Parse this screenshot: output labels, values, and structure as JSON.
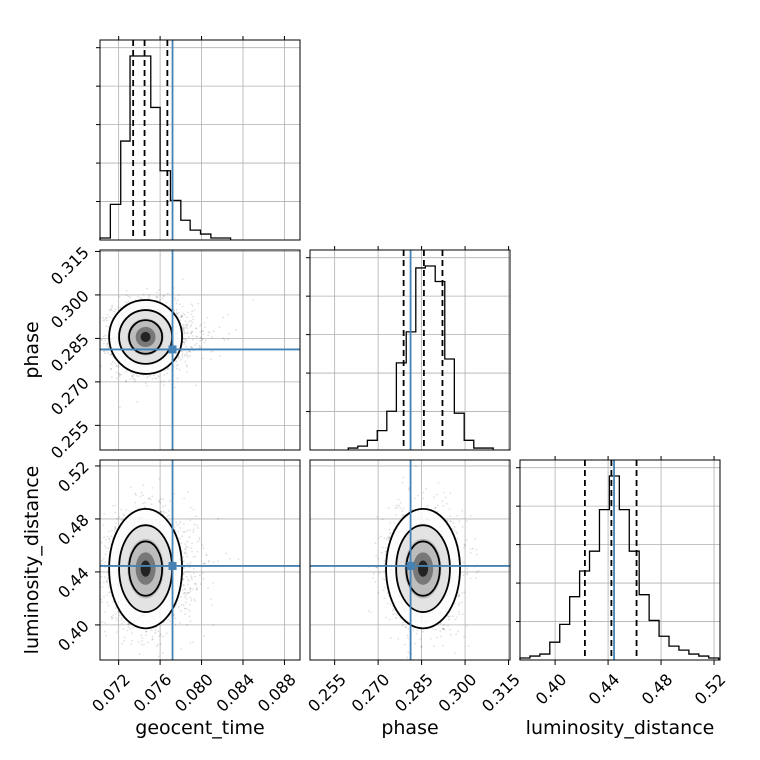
{
  "chart_data": {
    "type": "corner",
    "parameters": [
      "geocent_time",
      "phase",
      "luminosity_distance"
    ],
    "truths": {
      "geocent_time": 0.0772,
      "phase": 0.2812,
      "luminosity_distance": 0.4445
    },
    "truth_color": "#4682b4",
    "quantiles": {
      "geocent_time": [
        0.0734,
        0.0745,
        0.0767
      ],
      "phase": [
        0.2788,
        0.2858,
        0.2922
      ],
      "luminosity_distance": [
        0.4225,
        0.4425,
        0.4615
      ]
    },
    "ranges": {
      "geocent_time": [
        0.0702,
        0.0895
      ],
      "phase": [
        0.2465,
        0.3155
      ],
      "luminosity_distance": [
        0.3735,
        0.5245
      ]
    },
    "ticks": {
      "geocent_time": [
        "0.072",
        "0.076",
        "0.080",
        "0.084",
        "0.088"
      ],
      "phase": [
        "0.255",
        "0.270",
        "0.285",
        "0.300",
        "0.315"
      ],
      "luminosity_distance": [
        "0.40",
        "0.44",
        "0.48",
        "0.52"
      ]
    },
    "histograms": {
      "geocent_time": {
        "edges": [
          0.0702,
          0.0712,
          0.0722,
          0.0731,
          0.0741,
          0.0751,
          0.076,
          0.077,
          0.078,
          0.0789,
          0.0799,
          0.0809,
          0.0818,
          0.0828
        ],
        "counts": [
          1,
          18,
          50,
          93,
          93,
          67,
          35,
          20,
          10,
          5,
          3,
          1,
          1
        ]
      },
      "phase": {
        "edges": [
          0.2597,
          0.263,
          0.2663,
          0.2697,
          0.273,
          0.2763,
          0.2797,
          0.283,
          0.2863,
          0.2897,
          0.293,
          0.2963,
          0.2997,
          0.303,
          0.3063,
          0.3097
        ],
        "counts": [
          1,
          2,
          5,
          10,
          20,
          45,
          61,
          94,
          95,
          87,
          47,
          19,
          5,
          1,
          1
        ]
      },
      "luminosity_distance": {
        "edges": [
          0.3735,
          0.381,
          0.3885,
          0.396,
          0.4035,
          0.411,
          0.4185,
          0.426,
          0.4335,
          0.441,
          0.4485,
          0.456,
          0.4635,
          0.471,
          0.4785,
          0.486,
          0.4935,
          0.501,
          0.5085,
          0.516,
          0.5235
        ],
        "counts": [
          1,
          2,
          3,
          9,
          18,
          32,
          45,
          55,
          76,
          93,
          76,
          55,
          33,
          20,
          12,
          7,
          5,
          3,
          2,
          1
        ]
      }
    },
    "grid": true
  }
}
